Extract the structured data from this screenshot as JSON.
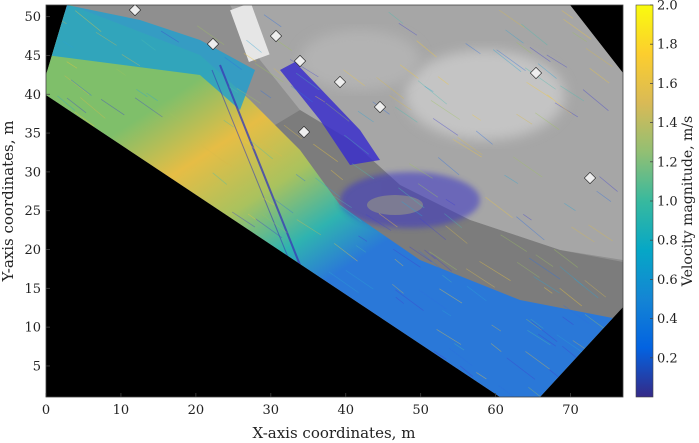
{
  "chart_data": {
    "type": "heatmap",
    "title": "",
    "xlabel": "X-axis coordinates, m",
    "ylabel": "Y-axis coordinates, m",
    "xlim": [
      0,
      77
    ],
    "ylim": [
      1,
      51.5
    ],
    "xticks": [
      0,
      10,
      20,
      30,
      40,
      50,
      60,
      70
    ],
    "yticks": [
      5,
      10,
      15,
      20,
      25,
      30,
      35,
      40,
      45,
      50
    ],
    "colorbar": {
      "label": "Velocity magnitude, m/s",
      "range": [
        0,
        2.0
      ],
      "ticks": [
        0.2,
        0.4,
        0.6,
        0.8,
        1.0,
        1.2,
        1.4,
        1.6,
        1.8,
        2.0
      ],
      "tick_labels": [
        "0.2",
        "0.4",
        "0.6",
        "0.8",
        "1.0",
        "1.2",
        "1.4",
        "1.6",
        "1.8",
        "2.0"
      ],
      "colormap": "parula",
      "colors": [
        "#352a87",
        "#0363e1",
        "#1485d4",
        "#06a7c6",
        "#38b99e",
        "#92bf73",
        "#d9ba56",
        "#fcce2e",
        "#f9fb0e"
      ]
    },
    "background_outside_image": "#000000",
    "field_bands": [
      {
        "region": "upper-left shore strip",
        "velocity": 0.8
      },
      {
        "region": "main channel core",
        "velocity": 1.6
      },
      {
        "region": "channel middle",
        "velocity": 1.2
      },
      {
        "region": "channel lower edge",
        "velocity": 0.6
      },
      {
        "region": "recirculation eddy near (38, 26)",
        "velocity": 0.2
      },
      {
        "region": "tributary inflow near (35, 38)",
        "velocity": 0.1
      }
    ]
  },
  "axis": {
    "xlabel": "X-axis coordinates, m",
    "ylabel": "Y-axis coordinates, m",
    "colorbar_label": "Velocity magnitude, m/s"
  }
}
